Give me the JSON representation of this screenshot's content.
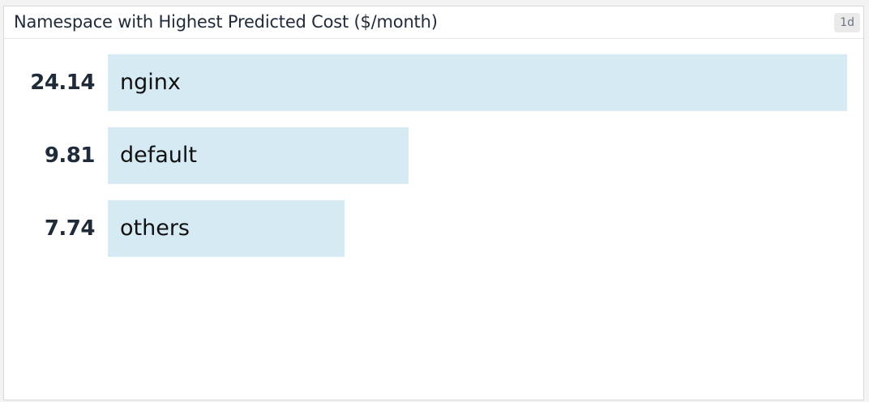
{
  "widget": {
    "title": "Namespace with Highest Predicted Cost ($/month)",
    "timeframe": "1d"
  },
  "colors": {
    "bar": "#d6eaf3",
    "value_text": "#1f2b38",
    "label_text": "#111111"
  },
  "chart_data": {
    "type": "bar",
    "orientation": "horizontal",
    "title": "Namespace with Highest Predicted Cost ($/month)",
    "categories": [
      "nginx",
      "default",
      "others"
    ],
    "values": [
      24.14,
      9.81,
      7.74
    ],
    "value_labels": [
      "24.14",
      "9.81",
      "7.74"
    ],
    "xlim": [
      0,
      24.14
    ],
    "grid": false,
    "legend": "none"
  }
}
